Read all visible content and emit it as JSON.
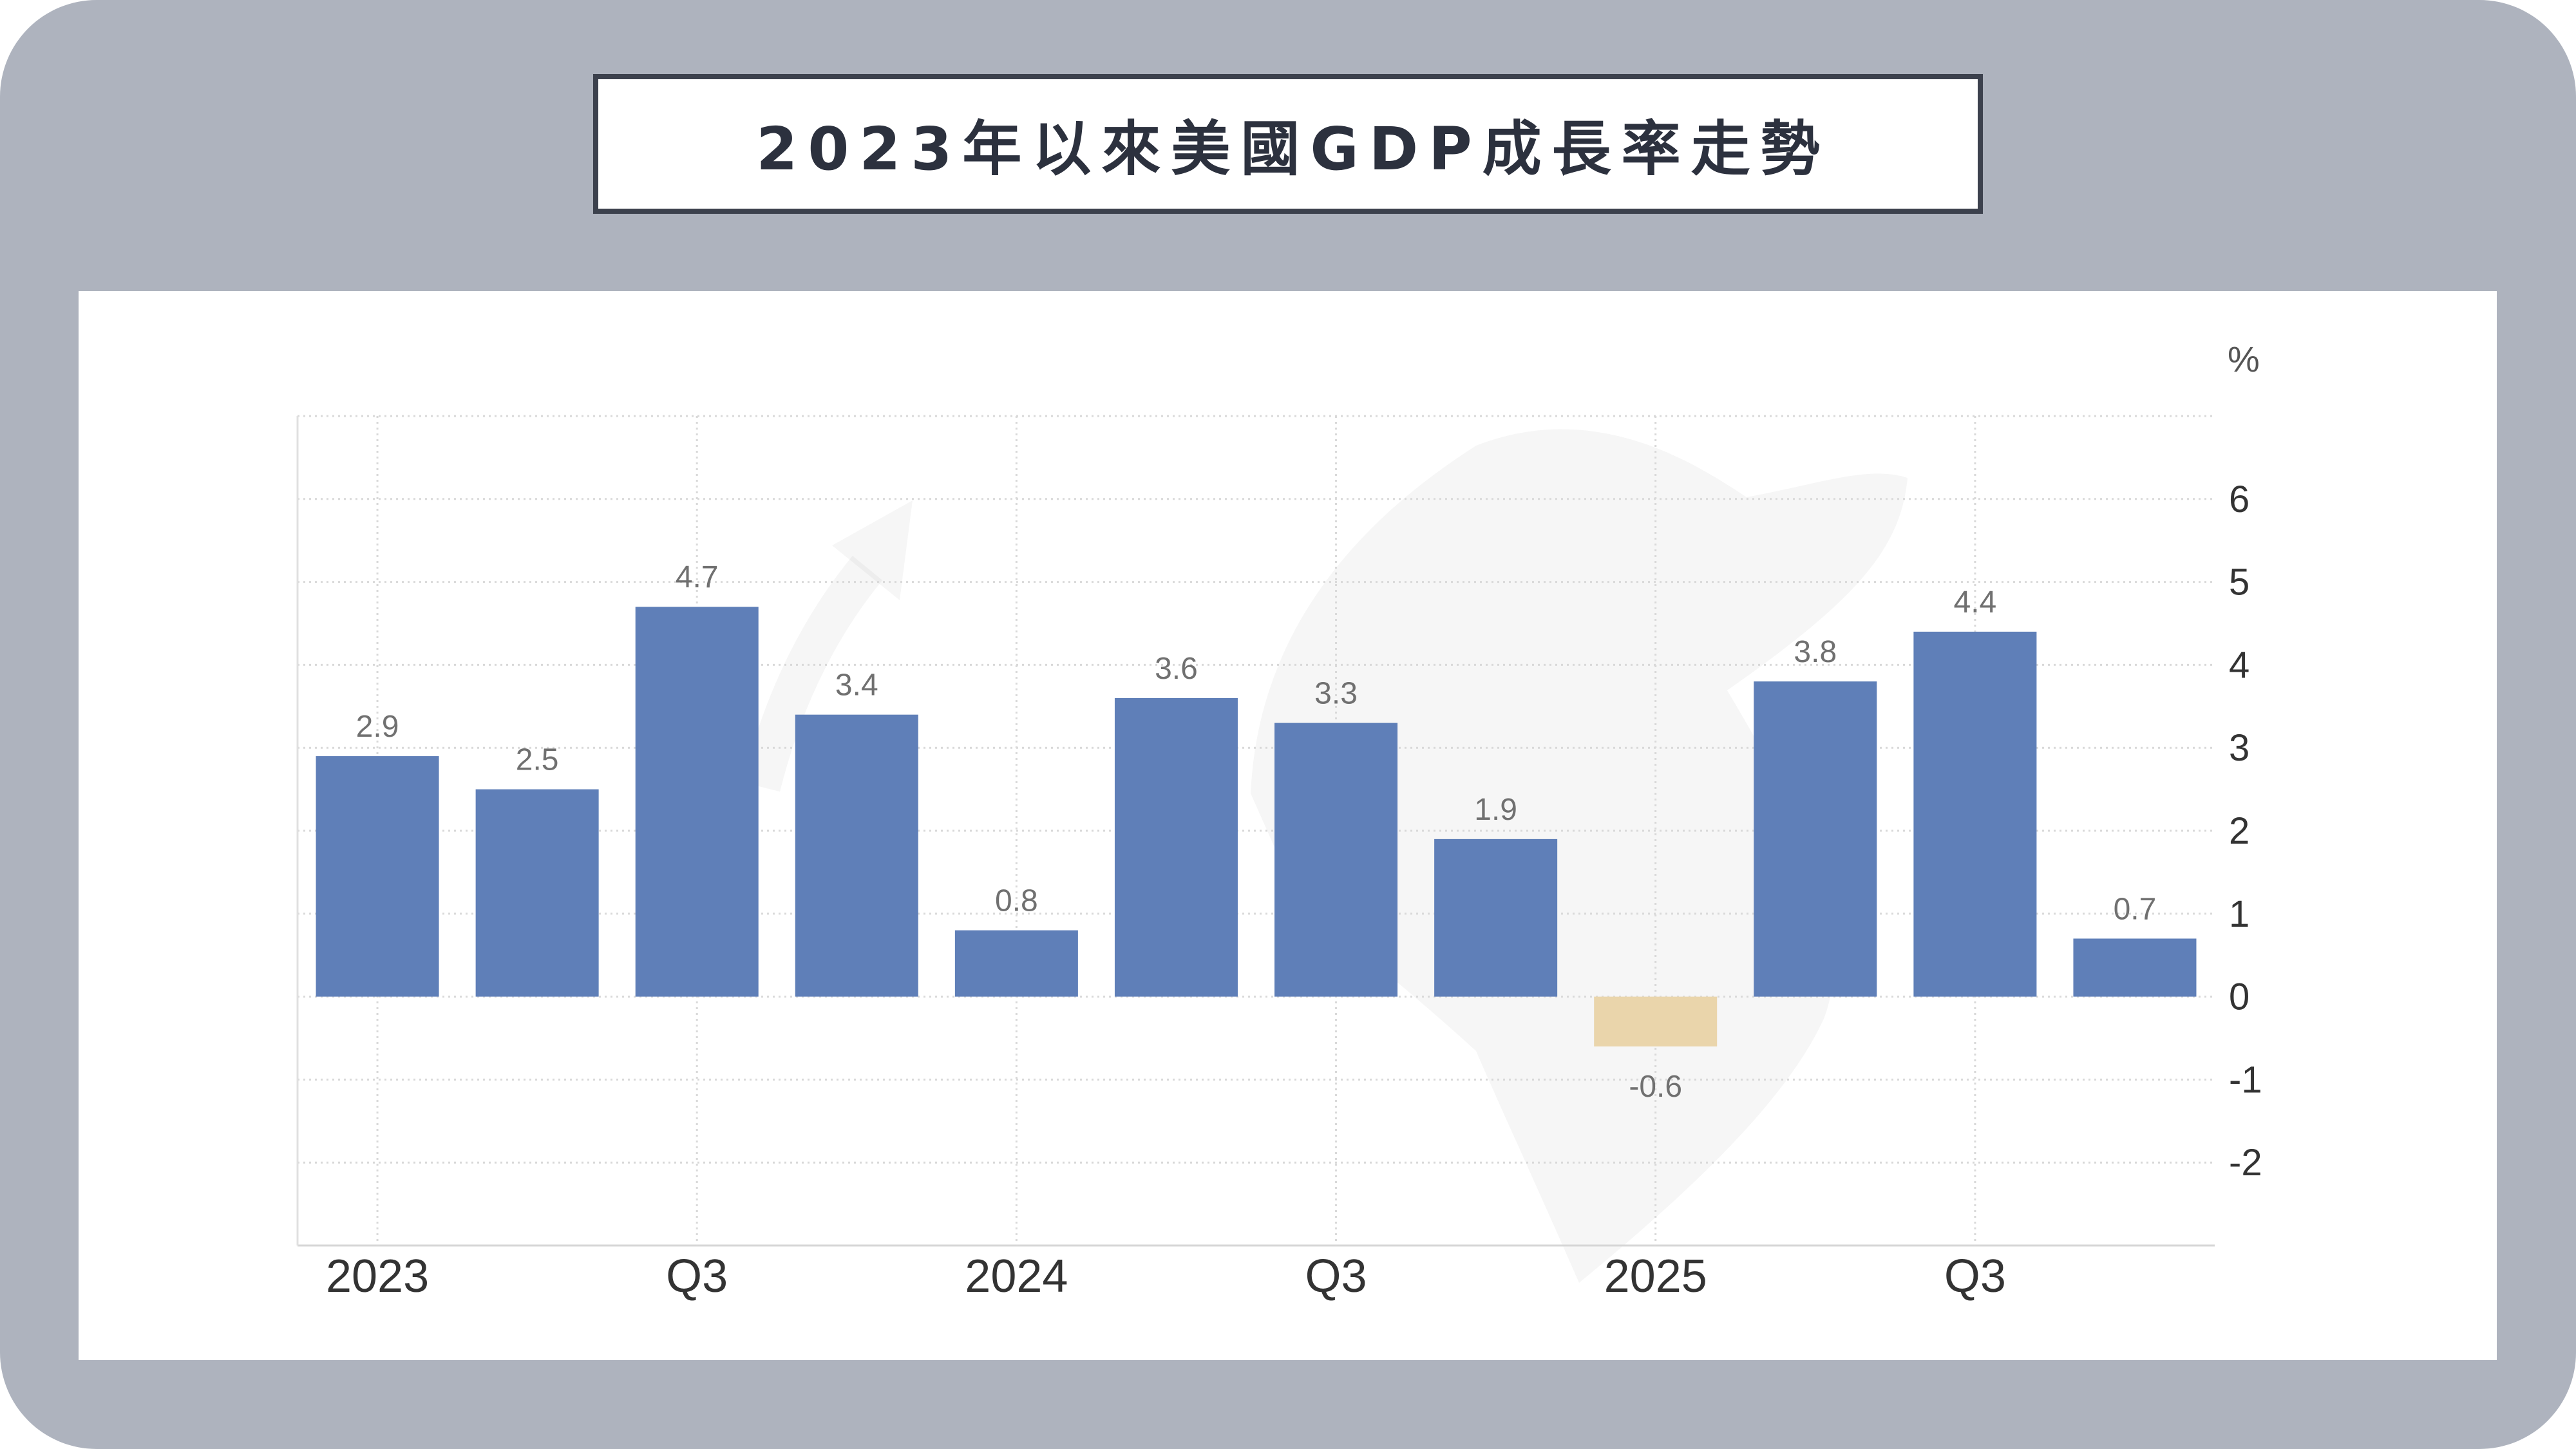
{
  "chart_data": {
    "type": "bar",
    "title": "2023年以來美國GDP成長率走勢",
    "ylabel": "%",
    "values": [
      2.9,
      2.5,
      4.7,
      3.4,
      0.8,
      3.6,
      3.3,
      1.9,
      -0.6,
      3.8,
      4.4,
      0.7
    ],
    "x_ticks": [
      {
        "index": 0,
        "label": "2023"
      },
      {
        "index": 2,
        "label": "Q3"
      },
      {
        "index": 4,
        "label": "2024"
      },
      {
        "index": 6,
        "label": "Q3"
      },
      {
        "index": 8,
        "label": "2025"
      },
      {
        "index": 10,
        "label": "Q3"
      }
    ],
    "ylim": [
      -3,
      7
    ],
    "y_ticks": [
      6,
      5,
      4,
      3,
      2,
      1,
      0,
      -1,
      -2
    ],
    "y_axis_side": "right",
    "grid": true,
    "data_labels": true,
    "colors": {
      "positive": "#5f7fb8",
      "negative": "#ead5ab"
    }
  }
}
